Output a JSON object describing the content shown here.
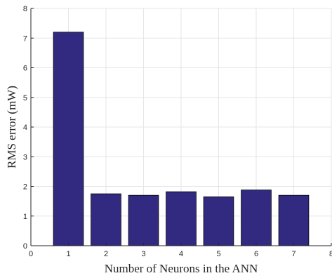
{
  "chart_data": {
    "type": "bar",
    "title": "",
    "xlabel": "Number of Neurons in the ANN",
    "ylabel": "RMS error (mW)",
    "categories": [
      "1",
      "2",
      "3",
      "4",
      "5",
      "6",
      "7"
    ],
    "x": [
      1,
      2,
      3,
      4,
      5,
      6,
      7
    ],
    "values": [
      7.2,
      1.75,
      1.7,
      1.82,
      1.65,
      1.88,
      1.7
    ],
    "xlim": [
      0,
      8
    ],
    "ylim": [
      0,
      8
    ],
    "xticks": [
      "0",
      "1",
      "2",
      "3",
      "4",
      "5",
      "6",
      "7",
      "8"
    ],
    "yticks": [
      "0",
      "1",
      "2",
      "3",
      "4",
      "5",
      "6",
      "7",
      "8"
    ],
    "grid": true,
    "legend": "none",
    "bar_color": "#322a80",
    "edge_color": "#000000",
    "grid_color": "#e6e6e6",
    "axis_color": "#262626"
  }
}
